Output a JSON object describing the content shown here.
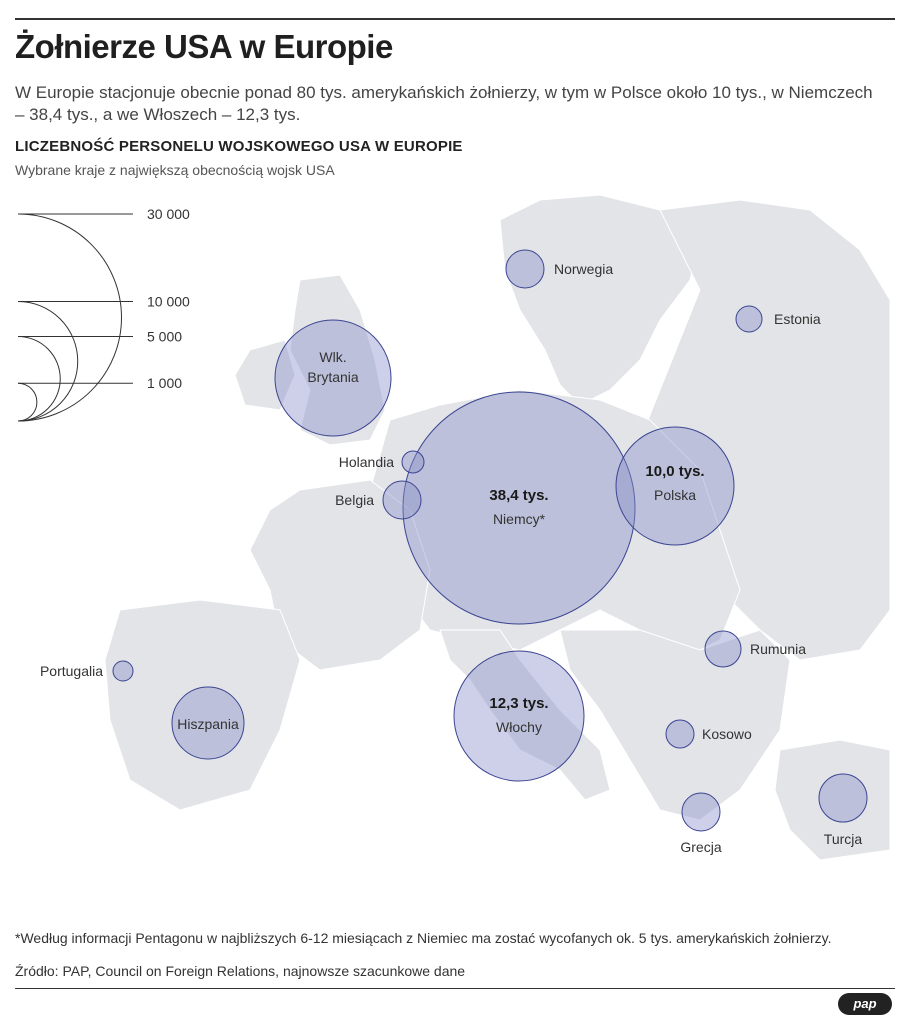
{
  "header": {
    "title": "Żołnierze USA w Europie",
    "subtitle": "W Europie stacjonuje obecnie ponad 80 tys. amerykańskich żołnierzy, w tym w Polsce około 10 tys., w Niemczech – 38,4 tys., a we Włoszech – 12,3 tys.",
    "section_title": "LICZEBNOŚĆ PERSONELU WOJSKOWEGO USA W EUROPIE",
    "section_subtitle": "Wybrane kraje z największą obecnością wojsk USA"
  },
  "legend": {
    "items": [
      {
        "value": 30000,
        "label": "30 000"
      },
      {
        "value": 10000,
        "label": "10 000"
      },
      {
        "value": 5000,
        "label": "5 000"
      },
      {
        "value": 1000,
        "label": "1 000"
      }
    ]
  },
  "countries": [
    {
      "name": "Niemcy*",
      "value_label": "38,4 tys.",
      "value": 38400
    },
    {
      "name": "Włochy",
      "value_label": "12,3 tys.",
      "value": 12300
    },
    {
      "name": "Polska",
      "value_label": "10,0 tys.",
      "value": 10000
    },
    {
      "name": "Wlk. Brytania",
      "value_label": ""
    },
    {
      "name": "Hiszpania",
      "value_label": ""
    },
    {
      "name": "Turcja",
      "value_label": ""
    },
    {
      "name": "Norwegia",
      "value_label": ""
    },
    {
      "name": "Rumunia",
      "value_label": ""
    },
    {
      "name": "Belgia",
      "value_label": ""
    },
    {
      "name": "Grecja",
      "value_label": ""
    },
    {
      "name": "Estonia",
      "value_label": ""
    },
    {
      "name": "Kosowo",
      "value_label": ""
    },
    {
      "name": "Holandia",
      "value_label": ""
    },
    {
      "name": "Portugalia",
      "value_label": ""
    }
  ],
  "colors": {
    "bubble_fill": "#8890c8",
    "bubble_stroke": "#3c4592",
    "land": "#e2e4e7"
  },
  "footer": {
    "footnote": "*Według informacji Pentagonu w najbliższych 6-12 miesiącach z Niemiec ma zostać wycofanych ok. 5 tys. amerykańskich żołnierzy.",
    "source": "Źródło: PAP, Council on Foreign Relations, najnowsze szacunkowe dane",
    "logo": "pap"
  }
}
